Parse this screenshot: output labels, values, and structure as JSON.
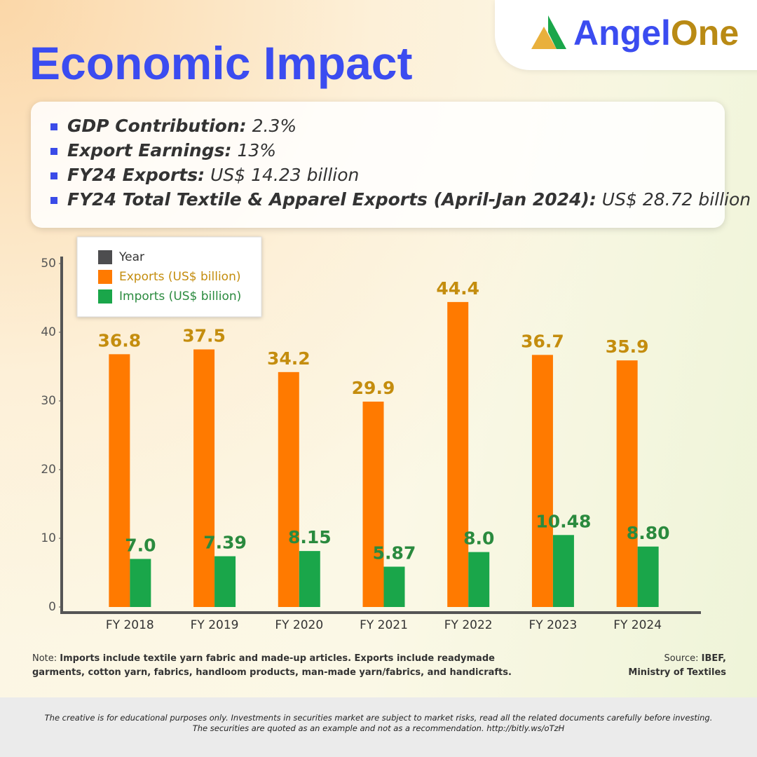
{
  "title": "Economic Impact",
  "logo": {
    "brand": "Angel",
    "suffix": "One"
  },
  "bullets": [
    {
      "label": "GDP Contribution:",
      "value": "2.3%"
    },
    {
      "label": "Export Earnings:",
      "value": "13%"
    },
    {
      "label": "FY24 Exports:",
      "value": "US$ 14.23 billion"
    },
    {
      "label": "FY24 Total Textile & Apparel Exports (April-Jan 2024):",
      "value": "US$ 28.72 billion"
    }
  ],
  "chart_data": {
    "type": "bar",
    "categories": [
      "FY 2018",
      "FY 2019",
      "FY 2020",
      "FY 2021",
      "FY 2022",
      "FY 2023",
      "FY 2024"
    ],
    "legend_title": {
      "name": "Year",
      "color": "#4d4d4f"
    },
    "series": [
      {
        "name": "Exports (US$ billion)",
        "color": "#ff7a00",
        "label_color": "#c48d0e",
        "values": [
          36.8,
          37.5,
          34.2,
          29.9,
          44.4,
          36.7,
          35.9
        ]
      },
      {
        "name": "Imports (US$ billion)",
        "color": "#1aa64a",
        "label_color": "#2a8a3e",
        "values": [
          7.0,
          7.39,
          8.15,
          5.87,
          8.0,
          10.48,
          8.8
        ],
        "value_labels": [
          "7.0",
          "7.39",
          "8.15",
          "5.87",
          "8.0",
          "10.48",
          "8.80"
        ]
      }
    ],
    "ylim": [
      0,
      50
    ],
    "yticks": [
      0,
      10,
      20,
      30,
      40,
      50
    ],
    "legend": "upper left"
  },
  "note": {
    "label": "Note:",
    "text": "Imports include textile yarn fabric and made-up articles. Exports include readymade garments, cotton yarn, fabrics, handloom products, man-made yarn/fabrics, and handicrafts."
  },
  "source": {
    "label": "Source:",
    "lines": [
      "IBEF,",
      "Ministry of Textiles"
    ]
  },
  "disclaimer": [
    "The creative is for educational purposes only. Investments in securities market are subject to market risks, read all the related documents carefully before investing.",
    "The securities are quoted as an example and not as a recommendation. http://bitly.ws/oTzH"
  ]
}
